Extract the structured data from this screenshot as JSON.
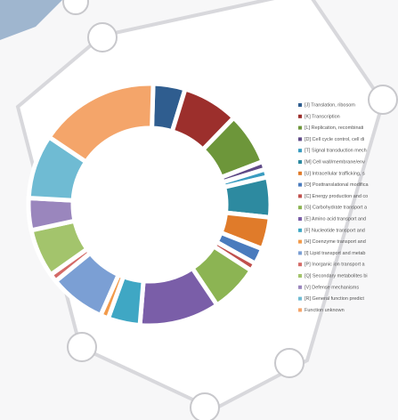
{
  "chart_data": {
    "type": "pie",
    "categories": [
      "[J] Translation, ribosom",
      "[K] Transcription",
      "[L] Replication, recombinati",
      "[D] Cell cycle control, cell di",
      "[T] Signal transduction mech",
      "[M] Cell wall/membrane/env",
      "[U] Intracellular trafficking, s",
      "[O] Posttranslational modifica",
      "[C] Energy production and co",
      "[G] Carbohydrate transport a",
      "[E] Amino acid transport and",
      "[F] Nucleotide transport and",
      "[H] Coenzyme transport and",
      "[I] Lipid transport and metab",
      "[P] Inorganic ion transport a",
      "[Q] Secondary metabolites bi",
      "[V] Defense mechanisms",
      "[R] General function predict",
      "Function unknown"
    ],
    "values": [
      4,
      7,
      6.5,
      1,
      1,
      5,
      4,
      2,
      1,
      6,
      10,
      4,
      1,
      7,
      1,
      6,
      4,
      8,
      15
    ],
    "colors": [
      "#2f5d8f",
      "#9c2f2c",
      "#6d963a",
      "#5f4a87",
      "#3a9cc0",
      "#2d8aa0",
      "#e07b2a",
      "#4a7bbd",
      "#c0504d",
      "#8cb453",
      "#7a5ea8",
      "#3fa7c4",
      "#f29a4a",
      "#7b9fd4",
      "#d46a67",
      "#a3c46c",
      "#9a86bd",
      "#6fbbd3",
      "#f4a56a"
    ],
    "legend": "right"
  }
}
